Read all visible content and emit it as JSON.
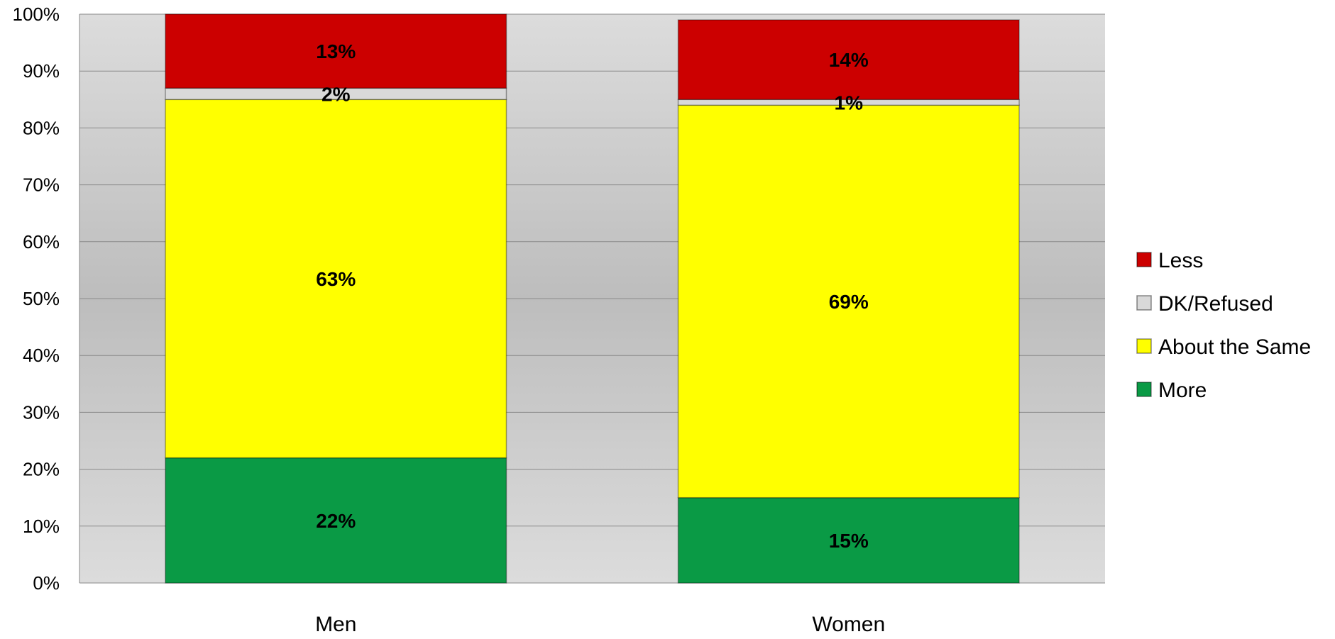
{
  "chart_data": {
    "type": "bar",
    "stacked": true,
    "percent_scale": true,
    "categories": [
      "Men",
      "Women"
    ],
    "series": [
      {
        "name": "More",
        "values": [
          22,
          15
        ],
        "labels": [
          "22%",
          "15%"
        ],
        "color": "#0a9a45"
      },
      {
        "name": "About the Same",
        "values": [
          63,
          69
        ],
        "labels": [
          "63%",
          "69%"
        ],
        "color": "#ffff00"
      },
      {
        "name": "DK/Refused",
        "values": [
          2,
          1
        ],
        "labels": [
          "2%",
          "1%"
        ],
        "color": "#d9d9d9"
      },
      {
        "name": "Less",
        "values": [
          13,
          14
        ],
        "labels": [
          "13%",
          "14%"
        ],
        "color": "#cc0000"
      }
    ],
    "y_ticks": [
      "0%",
      "10%",
      "20%",
      "30%",
      "40%",
      "50%",
      "60%",
      "70%",
      "80%",
      "90%",
      "100%"
    ],
    "ylim": [
      0,
      100
    ],
    "title": "",
    "xlabel": "",
    "ylabel": "",
    "grid": true,
    "legend_position": "right",
    "legend_order": [
      "Less",
      "DK/Refused",
      "About the Same",
      "More"
    ]
  }
}
